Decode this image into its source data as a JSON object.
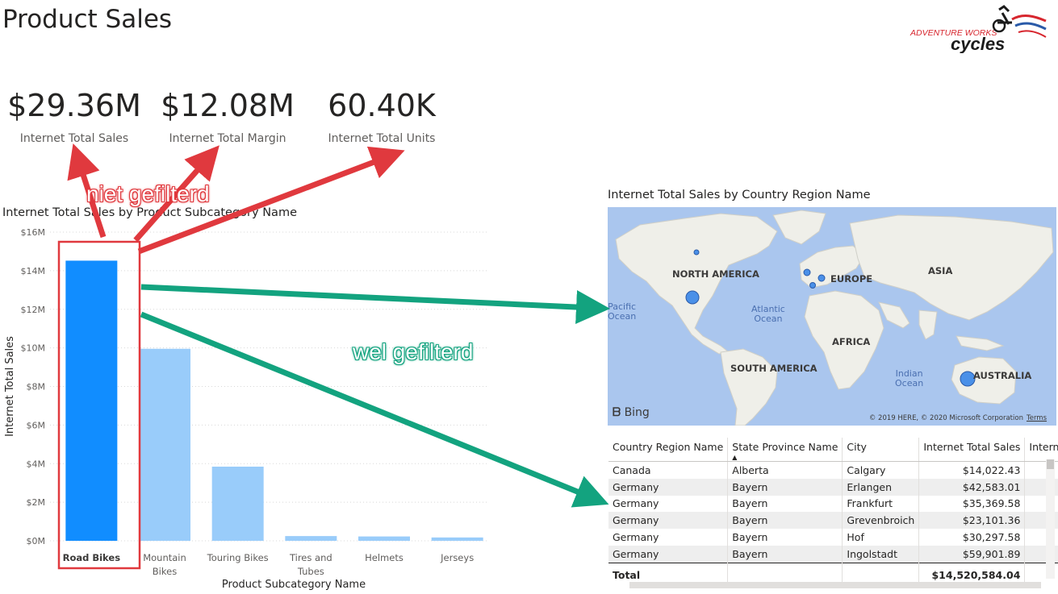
{
  "page": {
    "title": "Product Sales"
  },
  "logo": {
    "line1": "ADVENTURE WORKS",
    "line2": "cycles"
  },
  "kpis": [
    {
      "value": "$29.36M",
      "label": "Internet Total Sales"
    },
    {
      "value": "$12.08M",
      "label": "Internet Total Margin"
    },
    {
      "value": "60.40K",
      "label": "Internet Total Units"
    }
  ],
  "annotations": {
    "not_filtered": "niet gefilterd",
    "filtered": "wel gefilterd"
  },
  "colors": {
    "selected_bar": "#118dff",
    "unselected_bar": "#99ccfa",
    "red_annotation": "#e0393e",
    "green_annotation": "#13a37f"
  },
  "chart_data": {
    "type": "bar",
    "title": "Internet Total Sales by Product Subcategory Name",
    "xlabel": "Product Subcategory Name",
    "ylabel": "Internet Total Sales",
    "categories": [
      "Road Bikes",
      "Mountain Bikes",
      "Touring Bikes",
      "Tires and Tubes",
      "Helmets",
      "Jerseys"
    ],
    "category_lines": [
      [
        "Road Bikes"
      ],
      [
        "Mountain",
        "Bikes"
      ],
      [
        "Touring Bikes"
      ],
      [
        "Tires and",
        "Tubes"
      ],
      [
        "Helmets"
      ],
      [
        "Jerseys"
      ]
    ],
    "values": [
      14520584.04,
      9952759.56,
      3844801.05,
      245529.32,
      225335.6,
      172950.68
    ],
    "selected_index": 0,
    "ylim": [
      0,
      16000000
    ],
    "yticks": [
      {
        "value": 0,
        "label": "$0M"
      },
      {
        "value": 2000000,
        "label": "$2M"
      },
      {
        "value": 4000000,
        "label": "$4M"
      },
      {
        "value": 6000000,
        "label": "$6M"
      },
      {
        "value": 8000000,
        "label": "$8M"
      },
      {
        "value": 10000000,
        "label": "$10M"
      },
      {
        "value": 12000000,
        "label": "$12M"
      },
      {
        "value": 14000000,
        "label": "$14M"
      },
      {
        "value": 16000000,
        "label": "$16M"
      }
    ],
    "grid": true
  },
  "map": {
    "title": "Internet Total Sales by Country Region Name",
    "labels": {
      "north_america": "NORTH AMERICA",
      "europe": "EUROPE",
      "asia": "ASIA",
      "africa": "AFRICA",
      "south_america": "SOUTH AMERICA",
      "australia": "AUSTRALIA"
    },
    "oceans": {
      "pacific": [
        "Pacific",
        "Ocean"
      ],
      "atlantic": [
        "Atlantic",
        "Ocean"
      ],
      "indian": [
        "Indian",
        "Ocean"
      ]
    },
    "brand": "Bing",
    "copyright": "© 2019 HERE, © 2020 Microsoft Corporation",
    "terms": "Terms"
  },
  "table": {
    "columns": [
      "Country Region Name",
      "State Province Name",
      "City",
      "Internet Total Sales",
      "Intern"
    ],
    "sorted_column": 1,
    "rows": [
      [
        "Canada",
        "Alberta",
        "Calgary",
        "$14,022.43"
      ],
      [
        "Germany",
        "Bayern",
        "Erlangen",
        "$42,583.01"
      ],
      [
        "Germany",
        "Bayern",
        "Frankfurt",
        "$35,369.58"
      ],
      [
        "Germany",
        "Bayern",
        "Grevenbroich",
        "$23,101.36"
      ],
      [
        "Germany",
        "Bayern",
        "Hof",
        "$30,297.58"
      ],
      [
        "Germany",
        "Bayern",
        "Ingolstadt",
        "$59,901.89"
      ]
    ],
    "total_label": "Total",
    "total_value": "$14,520,584.04"
  }
}
